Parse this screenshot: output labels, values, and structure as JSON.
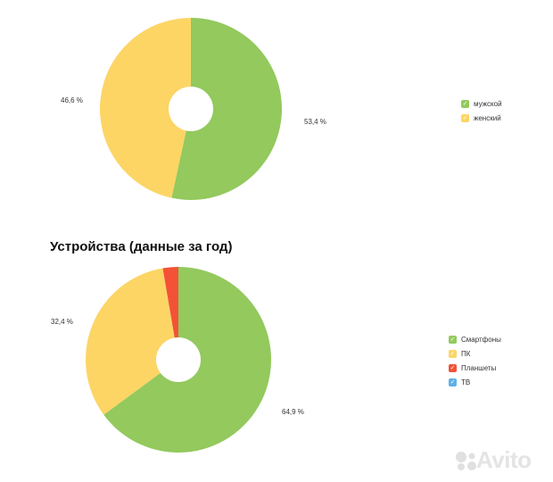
{
  "chart_data": [
    {
      "type": "pie",
      "title": "",
      "style": "donut",
      "series": [
        {
          "name": "мужской",
          "value": 53.4,
          "color": "#93c95d",
          "label": "53,4 %"
        },
        {
          "name": "женский",
          "value": 46.6,
          "color": "#fcd565",
          "label": "46,6 %"
        }
      ],
      "legend": "right"
    },
    {
      "type": "pie",
      "title": "Устройства (данные за год)",
      "style": "donut",
      "series": [
        {
          "name": "Смартфоны",
          "value": 64.9,
          "color": "#93c95d",
          "label": "64,9 %"
        },
        {
          "name": "ПК",
          "value": 32.4,
          "color": "#fcd565",
          "label": "32,4 %"
        },
        {
          "name": "Планшеты",
          "value": 2.7,
          "color": "#f45236",
          "label": ""
        },
        {
          "name": "ТВ",
          "value": 0.0,
          "color": "#5fb0e8",
          "label": ""
        }
      ],
      "legend": "right"
    }
  ],
  "watermark": {
    "text": "Avito",
    "icon": "avito-logo-dots-icon"
  }
}
